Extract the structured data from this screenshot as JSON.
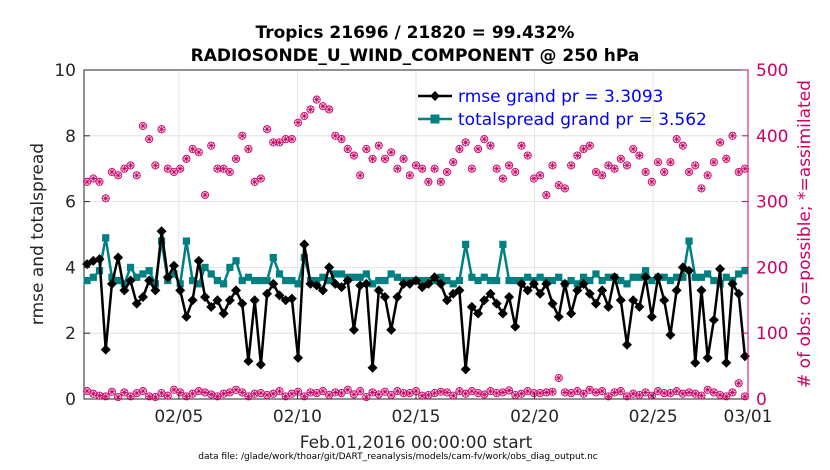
{
  "chart_data": {
    "type": "line",
    "title_line1": "Tropics 21696 / 21820 = 99.432%",
    "title_line2": "RADIOSONDE_U_WIND_COMPONENT @ 250 hPa",
    "xlabel": "Feb.01,2016 00:00:00 start",
    "ylabel_left": "rmse and totalspread",
    "ylabel_right": "# of obs: o=possible; *=assimilated",
    "footnote": "data file: /glade/work/thoar/git/DART_reanalysis/models/cam-fv/work/obs_diag_output.nc",
    "xlim": [
      1,
      29
    ],
    "ylim_left": [
      0,
      10
    ],
    "ylim_right": [
      0,
      500
    ],
    "x_ticks": [
      {
        "value": 5,
        "label": "02/05"
      },
      {
        "value": 10,
        "label": "02/10"
      },
      {
        "value": 15,
        "label": "02/15"
      },
      {
        "value": 20,
        "label": "02/20"
      },
      {
        "value": 25,
        "label": "02/25"
      },
      {
        "value": 29,
        "label": "03/01"
      }
    ],
    "y_ticks_left": [
      "0",
      "2",
      "4",
      "6",
      "8",
      "10"
    ],
    "y_ticks_right": [
      "0",
      "100",
      "200",
      "300",
      "400",
      "500"
    ],
    "grid": true,
    "colors": {
      "rmse": "#000000",
      "spread": "#008080",
      "obs": "#cc0066",
      "legend_text": "#0000ff"
    },
    "series": [
      {
        "name": "rmse grand pr = 3.3093",
        "axis": "left",
        "values": [
          4.1,
          4.2,
          4.25,
          1.5,
          3.5,
          4.3,
          3.3,
          3.6,
          2.9,
          3.1,
          3.6,
          3.3,
          5.1,
          3.7,
          4.05,
          3.3,
          2.5,
          3.0,
          4.2,
          3.1,
          2.8,
          3.0,
          2.6,
          3.0,
          3.3,
          2.9,
          1.15,
          3.0,
          1.05,
          3.2,
          3.5,
          3.15,
          3.0,
          3.05,
          1.25,
          4.7,
          3.5,
          3.45,
          3.3,
          4.0,
          3.5,
          3.4,
          3.6,
          2.1,
          3.45,
          3.5,
          0.95,
          3.3,
          3.1,
          2.1,
          3.1,
          3.5,
          3.5,
          3.6,
          3.4,
          3.5,
          3.7,
          3.5,
          3.0,
          3.2,
          3.3,
          0.9,
          2.8,
          2.6,
          3.0,
          3.2,
          2.9,
          2.6,
          3.1,
          2.2,
          3.5,
          3.3,
          3.5,
          3.2,
          3.5,
          2.9,
          2.5,
          3.5,
          2.6,
          3.3,
          3.5,
          3.2,
          2.9,
          3.3,
          2.8,
          3.7,
          3.0,
          1.65,
          3.0,
          2.8,
          3.7,
          2.5,
          3.7,
          3.0,
          1.95,
          3.3,
          4.0,
          3.9,
          1.1,
          3.3,
          1.25,
          2.4,
          3.95,
          1.1,
          3.5,
          3.2,
          1.3
        ]
      },
      {
        "name": "totalspread grand pr = 3.562",
        "axis": "left",
        "values": [
          3.6,
          3.7,
          3.9,
          4.9,
          3.7,
          3.6,
          3.5,
          4.0,
          3.7,
          3.8,
          3.9,
          3.5,
          4.8,
          3.6,
          3.8,
          3.5,
          4.8,
          3.6,
          3.5,
          4.0,
          3.8,
          3.6,
          3.5,
          4.0,
          4.2,
          3.6,
          3.7,
          3.6,
          3.6,
          3.6,
          4.3,
          3.8,
          3.6,
          3.6,
          3.5,
          4.3,
          3.6,
          3.6,
          3.7,
          3.6,
          3.8,
          3.8,
          3.7,
          3.7,
          3.7,
          3.8,
          3.5,
          3.6,
          3.6,
          3.8,
          3.7,
          3.6,
          3.6,
          3.6,
          3.6,
          3.6,
          3.6,
          3.7,
          3.6,
          3.5,
          3.6,
          4.7,
          3.7,
          3.6,
          3.7,
          3.6,
          3.6,
          4.7,
          3.6,
          3.6,
          3.6,
          3.7,
          3.6,
          3.7,
          3.6,
          3.6,
          3.7,
          3.5,
          3.6,
          3.5,
          3.7,
          3.6,
          3.8,
          3.6,
          3.7,
          3.7,
          3.6,
          3.5,
          3.7,
          3.7,
          3.9,
          3.6,
          3.7,
          3.7,
          3.6,
          3.7,
          3.7,
          4.8,
          3.7,
          3.7,
          3.8,
          3.6,
          3.5,
          3.7,
          3.6,
          3.8,
          3.9
        ]
      },
      {
        "name": "obs possible (low)",
        "axis": "right",
        "values": [
          12,
          8,
          5,
          4,
          11,
          3,
          10,
          4,
          9,
          12,
          4,
          3,
          9,
          5,
          14,
          10,
          4,
          8,
          12,
          10,
          7,
          4,
          8,
          10,
          14,
          10,
          4,
          8,
          9,
          6,
          8,
          12,
          4,
          8,
          11,
          4,
          10,
          9,
          12,
          6,
          10,
          9,
          14,
          7,
          12,
          3,
          10,
          7,
          11,
          6,
          12,
          9,
          9,
          12,
          5,
          6,
          9,
          11,
          10,
          5,
          12,
          8,
          12,
          9,
          7,
          12,
          9,
          10,
          13,
          6,
          8,
          12,
          9,
          9,
          10,
          11,
          32,
          10,
          9,
          12,
          8,
          14,
          10,
          12,
          4,
          10,
          12,
          4,
          8,
          6,
          10,
          5,
          12,
          9,
          9,
          12,
          8,
          10,
          8,
          5,
          14,
          10,
          6,
          4,
          10,
          24,
          4
        ]
      },
      {
        "name": "obs possible (high)",
        "axis": "right",
        "values": [
          330,
          335,
          330,
          305,
          345,
          340,
          350,
          355,
          340,
          415,
          395,
          355,
          410,
          350,
          345,
          350,
          365,
          380,
          375,
          310,
          385,
          350,
          350,
          345,
          365,
          400,
          380,
          330,
          335,
          410,
          390,
          390,
          395,
          395,
          420,
          430,
          440,
          455,
          445,
          440,
          400,
          395,
          380,
          370,
          340,
          380,
          365,
          385,
          365,
          375,
          350,
          365,
          340,
          355,
          350,
          330,
          350,
          330,
          345,
          360,
          380,
          390,
          350,
          380,
          395,
          385,
          350,
          335,
          355,
          345,
          385,
          370,
          335,
          340,
          310,
          355,
          325,
          320,
          355,
          370,
          380,
          385,
          345,
          340,
          355,
          350,
          365,
          355,
          380,
          370,
          345,
          330,
          360,
          345,
          360,
          395,
          385,
          345,
          355,
          320,
          340,
          360,
          390,
          365,
          400,
          345,
          350
        ]
      }
    ]
  }
}
